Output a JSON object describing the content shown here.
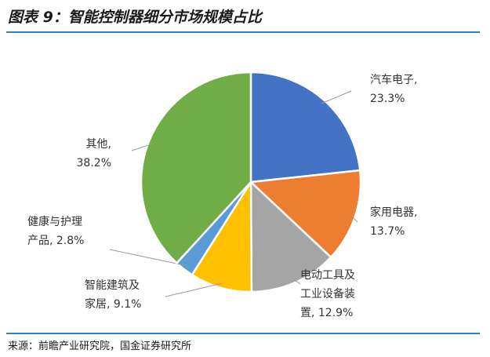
{
  "figure": {
    "title": "图表 9：智能控制器细分市场规模占比",
    "source": "来源：前瞻产业研究院，国金证券研究所"
  },
  "chart_data": {
    "type": "pie",
    "title": "",
    "slices": [
      {
        "label_lines": [
          "汽车电子,",
          "23.3%"
        ],
        "value": 23.3,
        "color": "#4472c4"
      },
      {
        "label_lines": [
          "家用电器,",
          "13.7%"
        ],
        "value": 13.7,
        "color": "#ed7d31"
      },
      {
        "label_lines": [
          "电动工具及",
          "工业设备装",
          "置, 12.9%"
        ],
        "value": 12.9,
        "color": "#a5a5a5"
      },
      {
        "label_lines": [
          "智能建筑及",
          "家居, 9.1%"
        ],
        "value": 9.1,
        "color": "#ffc000"
      },
      {
        "label_lines": [
          "健康与护理",
          "产品, 2.8%"
        ],
        "value": 2.8,
        "color": "#5b9bd5"
      },
      {
        "label_lines": [
          "其他,",
          "38.2%"
        ],
        "value": 38.2,
        "color": "#70ad47"
      }
    ],
    "start": "12 o'clock",
    "direction": "clockwise",
    "legend": "none",
    "label_style": "callout labels with leader lines"
  }
}
